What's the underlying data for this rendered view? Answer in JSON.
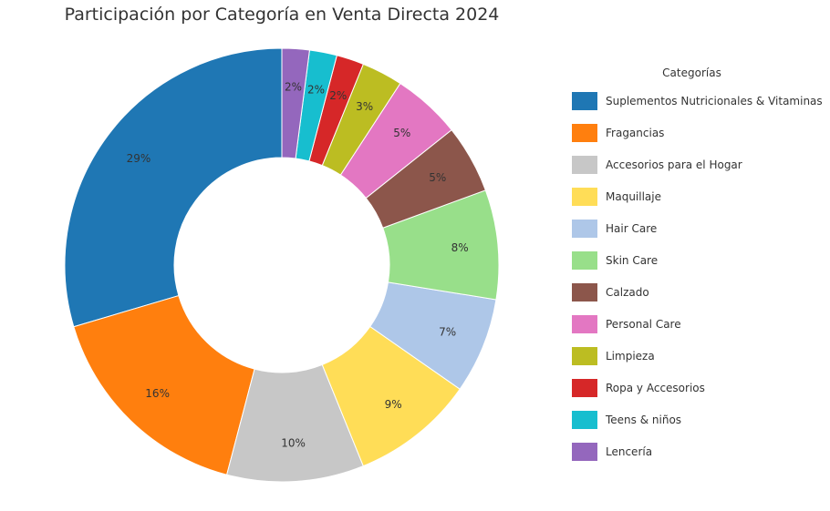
{
  "chart_data": {
    "type": "pie",
    "title": "Participación por Categoría en Venta Directa 2024",
    "legend_title": "Categorías",
    "legend_position": "right",
    "donut": true,
    "start_angle": "top",
    "direction": "counterclockwise",
    "slices": [
      {
        "label": "Suplementos Nutricionales & Vitaminas",
        "value": 29,
        "display": "29%",
        "color": "#1f77b4"
      },
      {
        "label": "Fragancias",
        "value": 16,
        "display": "16%",
        "color": "#ff7f0e"
      },
      {
        "label": "Accesorios para el Hogar",
        "value": 10,
        "display": "10%",
        "color": "#c7c7c7"
      },
      {
        "label": "Maquillaje",
        "value": 9,
        "display": "9%",
        "color": "#ffdd57"
      },
      {
        "label": "Hair Care",
        "value": 7,
        "display": "7%",
        "color": "#aec7e8"
      },
      {
        "label": "Skin Care",
        "value": 8,
        "display": "8%",
        "color": "#98df8a"
      },
      {
        "label": "Calzado",
        "value": 5,
        "display": "5%",
        "color": "#8c564b"
      },
      {
        "label": "Personal Care",
        "value": 5,
        "display": "5%",
        "color": "#e377c2"
      },
      {
        "label": "Limpieza",
        "value": 3,
        "display": "3%",
        "color": "#bcbd22"
      },
      {
        "label": "Ropa y Accesorios",
        "value": 2,
        "display": "2%",
        "color": "#d62728"
      },
      {
        "label": "Teens & niños",
        "value": 2,
        "display": "2%",
        "color": "#17becf"
      },
      {
        "label": "Lencería",
        "value": 2,
        "display": "2%",
        "color": "#9467bd"
      }
    ]
  }
}
